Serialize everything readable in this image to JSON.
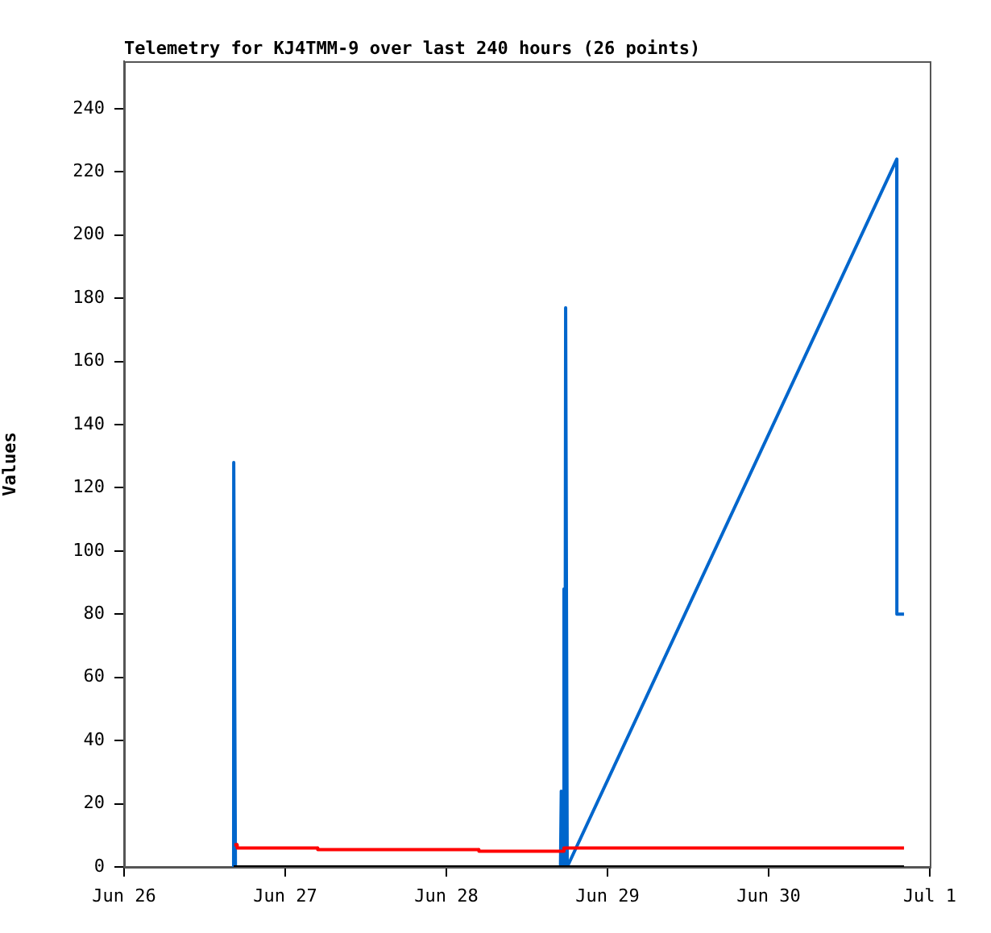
{
  "chart_data": {
    "type": "line",
    "title": "Telemetry for KJ4TMM-9 over last 240 hours (26 points)",
    "ylabel": "Values",
    "series": [
      {
        "color": "#0066cc",
        "x": [
          "--06-26T16:19",
          "--06-26T16:20",
          "--06-26T16:35",
          "--06-28T17:00",
          "--06-28T17:07",
          "--06-28T17:20",
          "--06-28T17:31",
          "--06-28T17:40",
          "--06-28T17:46",
          "--06-28T18:00",
          "--06-30T19:05",
          "--06-30T19:06",
          "--06-30T20:10"
        ],
        "values": [
          0,
          128,
          0,
          0,
          24,
          0,
          88,
          0,
          177,
          0,
          224,
          80,
          80
        ]
      },
      {
        "color": "#ff0000",
        "x": [
          "--06-26T16:25",
          "--06-26T16:50",
          "--06-26T16:51",
          "--06-27T04:50",
          "--06-27T04:51",
          "--06-28T04:50",
          "--06-28T04:51",
          "--06-28T17:30",
          "--06-28T17:31",
          "--06-30T20:10"
        ],
        "values": [
          7,
          7,
          6,
          6,
          5.5,
          5.5,
          5,
          5,
          6,
          6
        ]
      },
      {
        "color": "#000000",
        "x": [
          "--06-26T16:19",
          "--06-30T20:10"
        ],
        "values": [
          0,
          0
        ]
      }
    ],
    "xlim": [
      "--06-26",
      "--07-01"
    ],
    "xticks": [
      {
        "value": "--06-26",
        "label": "Jun 26"
      },
      {
        "value": "--06-27",
        "label": "Jun 27"
      },
      {
        "value": "--06-28",
        "label": "Jun 28"
      },
      {
        "value": "--06-29",
        "label": "Jun 29"
      },
      {
        "value": "--06-30",
        "label": "Jun 30"
      },
      {
        "value": "--07-01",
        "label": "Jul 1"
      }
    ],
    "ylim": [
      0,
      255
    ],
    "yticks": [
      0,
      20,
      40,
      60,
      80,
      100,
      120,
      140,
      160,
      180,
      200,
      220,
      240
    ],
    "grid": false,
    "legend": false,
    "marker": "none",
    "line_style": "solid"
  }
}
